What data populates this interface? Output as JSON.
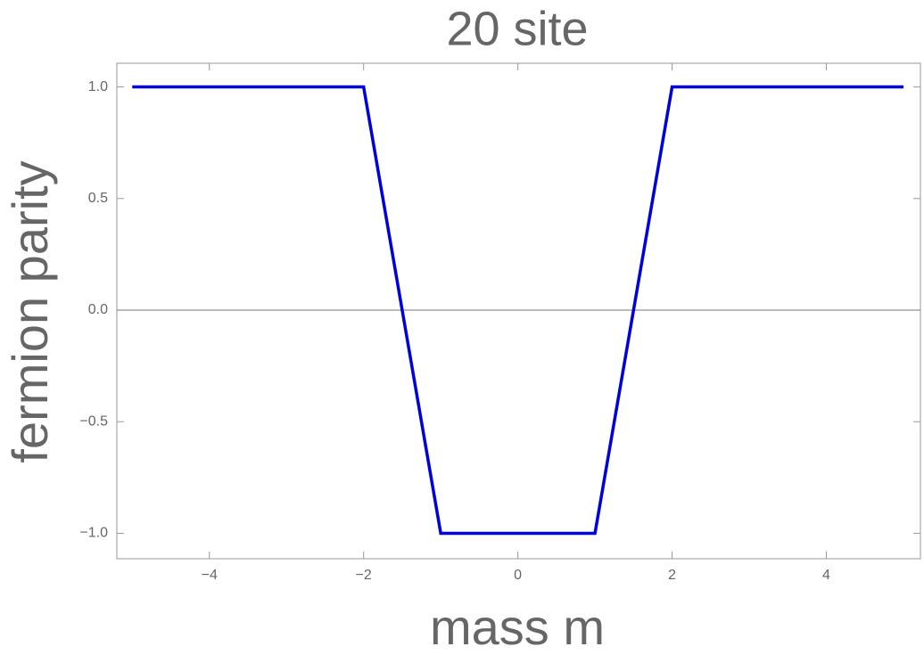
{
  "chart_data": {
    "type": "line",
    "title": "20 site",
    "xlabel": "mass m",
    "ylabel": "fermion parity",
    "x": [
      -5,
      -2,
      -1,
      1,
      2,
      5
    ],
    "series": [
      {
        "color": "#0000dd",
        "values": [
          1,
          1,
          -1,
          -1,
          1,
          1
        ]
      }
    ],
    "xlim": [
      -5.2,
      5.22
    ],
    "ylim": [
      -1.114,
      1.106
    ],
    "xticks": [
      {
        "value": -4,
        "label": "−4"
      },
      {
        "value": -2,
        "label": "−2"
      },
      0,
      2,
      4
    ],
    "yticks": [
      {
        "value": -1,
        "label": "−1.0"
      },
      {
        "value": -0.5,
        "label": "−0.5"
      },
      {
        "value": 0,
        "label": "0.0"
      },
      {
        "value": 0.5,
        "label": "0.5"
      },
      {
        "value": 1,
        "label": "1.0"
      }
    ]
  }
}
